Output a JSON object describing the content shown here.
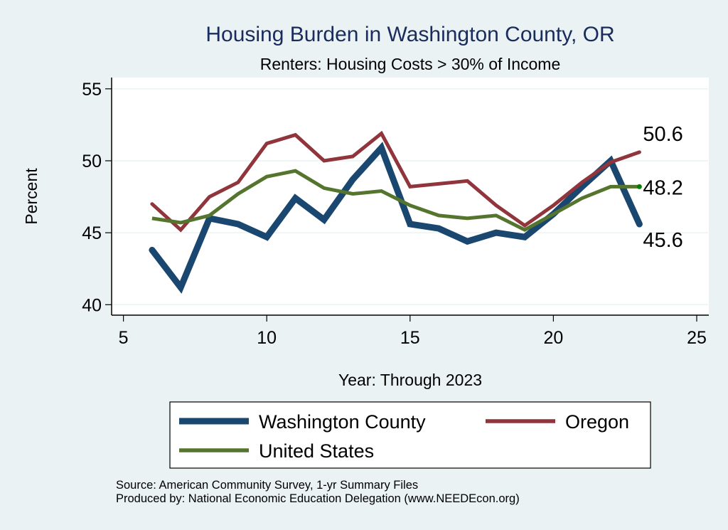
{
  "chart_data": {
    "type": "line",
    "title": "Housing Burden in Washington County, OR",
    "subtitle": "Renters: Housing Costs > 30% of Income",
    "xlabel": "Year: Through 2023",
    "ylabel": "Percent",
    "xlim": [
      5,
      25
    ],
    "ylim": [
      40,
      55
    ],
    "xticks": [
      5,
      10,
      15,
      20,
      25
    ],
    "yticks": [
      40,
      45,
      50,
      55
    ],
    "grid": true,
    "x": [
      6,
      7,
      8,
      9,
      10,
      11,
      12,
      13,
      14,
      15,
      16,
      17,
      18,
      19,
      20,
      21,
      22,
      23
    ],
    "series": [
      {
        "name": "Washington County",
        "color": "#1a476f",
        "values": [
          43.8,
          41.2,
          46.0,
          45.6,
          44.7,
          47.4,
          45.9,
          48.7,
          50.9,
          45.6,
          45.3,
          44.4,
          45.0,
          44.7,
          46.3,
          48.2,
          50.0,
          45.6
        ]
      },
      {
        "name": "Oregon",
        "color": "#90353b",
        "values": [
          47.0,
          45.2,
          47.5,
          48.5,
          51.2,
          51.8,
          50.0,
          50.3,
          51.9,
          48.2,
          48.4,
          48.6,
          46.9,
          45.5,
          46.9,
          48.5,
          49.9,
          50.6
        ]
      },
      {
        "name": "United States",
        "color": "#55752f",
        "values": [
          46.0,
          45.7,
          46.2,
          47.7,
          48.9,
          49.3,
          48.1,
          47.7,
          47.9,
          46.9,
          46.2,
          46.0,
          46.2,
          45.2,
          46.3,
          47.4,
          48.2,
          48.2
        ]
      }
    ],
    "end_labels": [
      {
        "series": "Oregon",
        "text": "50.6"
      },
      {
        "series": "United States",
        "text": "48.2"
      },
      {
        "series": "Washington County",
        "text": "45.6"
      }
    ],
    "legend": {
      "placement": "bottom",
      "entries": [
        "Washington County",
        "Oregon",
        "United States"
      ]
    },
    "notes": [
      "Source: American Community Survey, 1-yr Summary Files",
      "Produced by: National Economic Education Delegation (www.NEEDEcon.org)"
    ]
  }
}
